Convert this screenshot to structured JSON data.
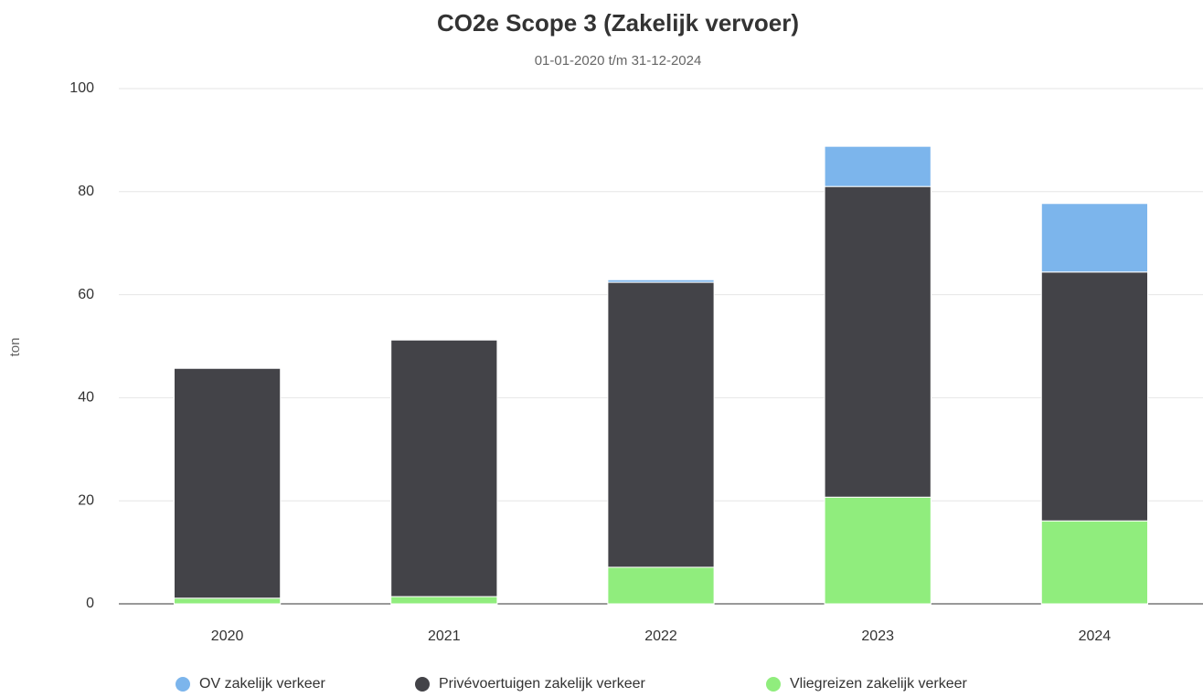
{
  "chart_data": {
    "type": "stacked_bar",
    "title": "CO2e Scope 3 (Zakelijk vervoer)",
    "subtitle": "01-01-2020 t/m 31-12-2024",
    "y_label": "ton",
    "categories": [
      "2020",
      "2021",
      "2022",
      "2023",
      "2024"
    ],
    "series": [
      {
        "name": "OV zakelijk verkeer",
        "color": "#7cb5ec",
        "values": [
          0,
          0,
          0.5,
          7.8,
          13.3
        ]
      },
      {
        "name": "Privévoertuigen zakelijk verkeer",
        "color": "#434348",
        "values": [
          44.6,
          49.8,
          55.3,
          60.3,
          48.3
        ]
      },
      {
        "name": "Vliegreizen zakelijk verkeer",
        "color": "#90ed7d",
        "values": [
          1.1,
          1.4,
          7.1,
          20.7,
          16.1
        ]
      }
    ],
    "ylim": [
      0,
      100
    ],
    "yticks": [
      0,
      20,
      40,
      60,
      80,
      100
    ],
    "grid": true,
    "legend": "bottom"
  }
}
